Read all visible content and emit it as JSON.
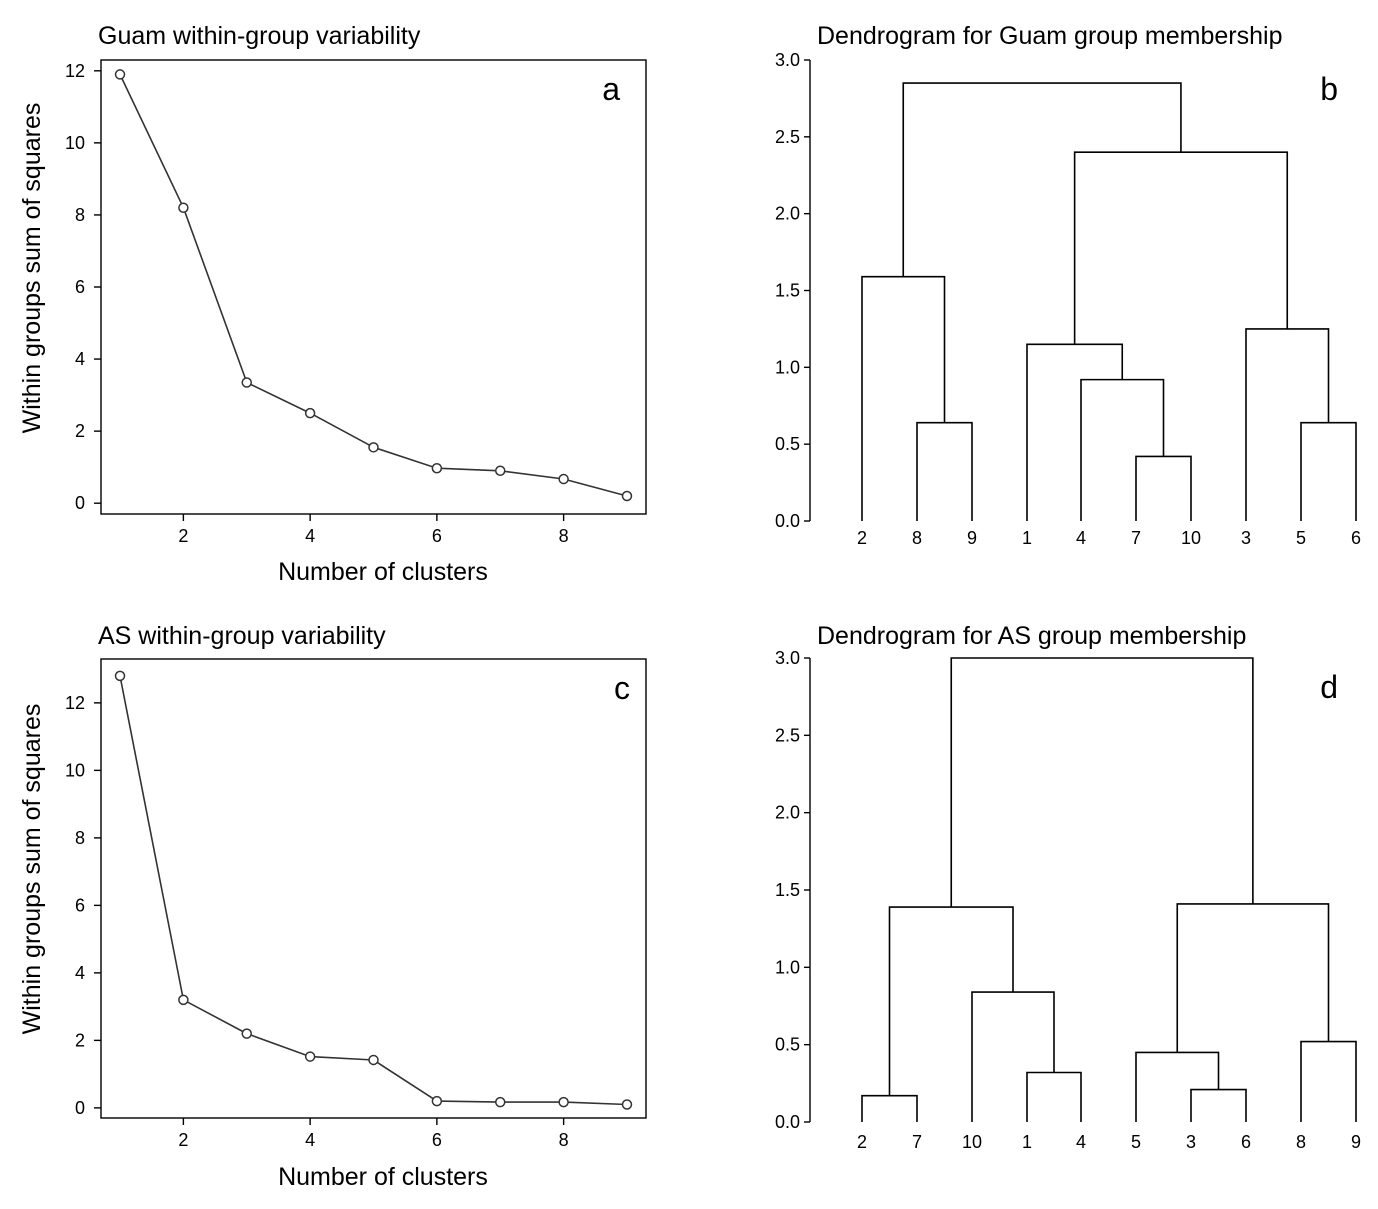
{
  "chart_data": [
    {
      "type": "line",
      "title": "Guam within-group variability",
      "panel_label": "a",
      "xlabel": "Number of clusters",
      "ylabel": "Within groups sum of squares",
      "x": [
        1,
        2,
        3,
        4,
        5,
        6,
        7,
        8,
        9
      ],
      "values": [
        11.9,
        8.2,
        3.35,
        2.5,
        1.55,
        0.97,
        0.9,
        0.67,
        0.2
      ],
      "xlim": [
        0.7,
        9.3
      ],
      "ylim": [
        -0.3,
        12.3
      ],
      "xticks": [
        2,
        4,
        6,
        8
      ],
      "yticks": [
        0,
        2,
        4,
        6,
        8,
        10,
        12
      ],
      "xtick_labels": [
        "2",
        "4",
        "6",
        "8"
      ],
      "ytick_labels": [
        "0",
        "2",
        "4",
        "6",
        "8",
        "10",
        "12"
      ]
    },
    {
      "type": "dendrogram",
      "title": "Dendrogram for Guam group membership",
      "panel_label": "b",
      "ylim": [
        0,
        3.0
      ],
      "yticks": [
        0.0,
        0.5,
        1.0,
        1.5,
        2.0,
        2.5,
        3.0
      ],
      "ytick_labels": [
        "0.0",
        "0.5",
        "1.0",
        "1.5",
        "2.0",
        "2.5",
        "3.0"
      ],
      "leaves": [
        "2",
        "8",
        "9",
        "1",
        "4",
        "7",
        "10",
        "3",
        "5",
        "6"
      ],
      "merges": [
        {
          "left": "L6",
          "right": "L7",
          "height": 0.42
        },
        {
          "left": "L5",
          "right": "M1",
          "height": 0.92
        },
        {
          "left": "L4",
          "right": "M2",
          "height": 1.15
        },
        {
          "left": "L9",
          "right": "L10",
          "height": 0.64
        },
        {
          "left": "L8",
          "right": "M4",
          "height": 1.25
        },
        {
          "left": "M3",
          "right": "M5",
          "height": 2.4
        },
        {
          "left": "L2",
          "right": "L3",
          "height": 0.64
        },
        {
          "left": "L1",
          "right": "M7",
          "height": 1.59
        },
        {
          "left": "M8",
          "right": "M6",
          "height": 2.85
        }
      ]
    },
    {
      "type": "line",
      "title": "AS within-group variability",
      "panel_label": "c",
      "xlabel": "Number of clusters",
      "ylabel": "Within groups sum of squares",
      "x": [
        1,
        2,
        3,
        4,
        5,
        6,
        7,
        8,
        9
      ],
      "values": [
        12.8,
        3.2,
        2.2,
        1.52,
        1.42,
        0.2,
        0.17,
        0.17,
        0.1
      ],
      "xlim": [
        0.7,
        9.3
      ],
      "ylim": [
        -0.3,
        13.3
      ],
      "xticks": [
        2,
        4,
        6,
        8
      ],
      "yticks": [
        0,
        2,
        4,
        6,
        8,
        10,
        12
      ],
      "xtick_labels": [
        "2",
        "4",
        "6",
        "8"
      ],
      "ytick_labels": [
        "0",
        "2",
        "4",
        "6",
        "8",
        "10",
        "12"
      ]
    },
    {
      "type": "dendrogram",
      "title": "Dendrogram for AS group membership",
      "panel_label": "d",
      "ylim": [
        0,
        3.0
      ],
      "yticks": [
        0.0,
        0.5,
        1.0,
        1.5,
        2.0,
        2.5,
        3.0
      ],
      "ytick_labels": [
        "0.0",
        "0.5",
        "1.0",
        "1.5",
        "2.0",
        "2.5",
        "3.0"
      ],
      "leaves": [
        "2",
        "7",
        "10",
        "1",
        "4",
        "5",
        "3",
        "6",
        "8",
        "9"
      ],
      "merges": [
        {
          "left": "L1",
          "right": "L2",
          "height": 0.17
        },
        {
          "left": "L4",
          "right": "L5",
          "height": 0.32
        },
        {
          "left": "L3",
          "right": "M2",
          "height": 0.84
        },
        {
          "left": "M1",
          "right": "M3",
          "height": 1.39
        },
        {
          "left": "L7",
          "right": "L8",
          "height": 0.21
        },
        {
          "left": "L6",
          "right": "M5",
          "height": 0.45
        },
        {
          "left": "L9",
          "right": "L10",
          "height": 0.52
        },
        {
          "left": "M6",
          "right": "M7",
          "height": 1.41
        },
        {
          "left": "M4",
          "right": "M8",
          "height": 3.0
        }
      ]
    }
  ]
}
